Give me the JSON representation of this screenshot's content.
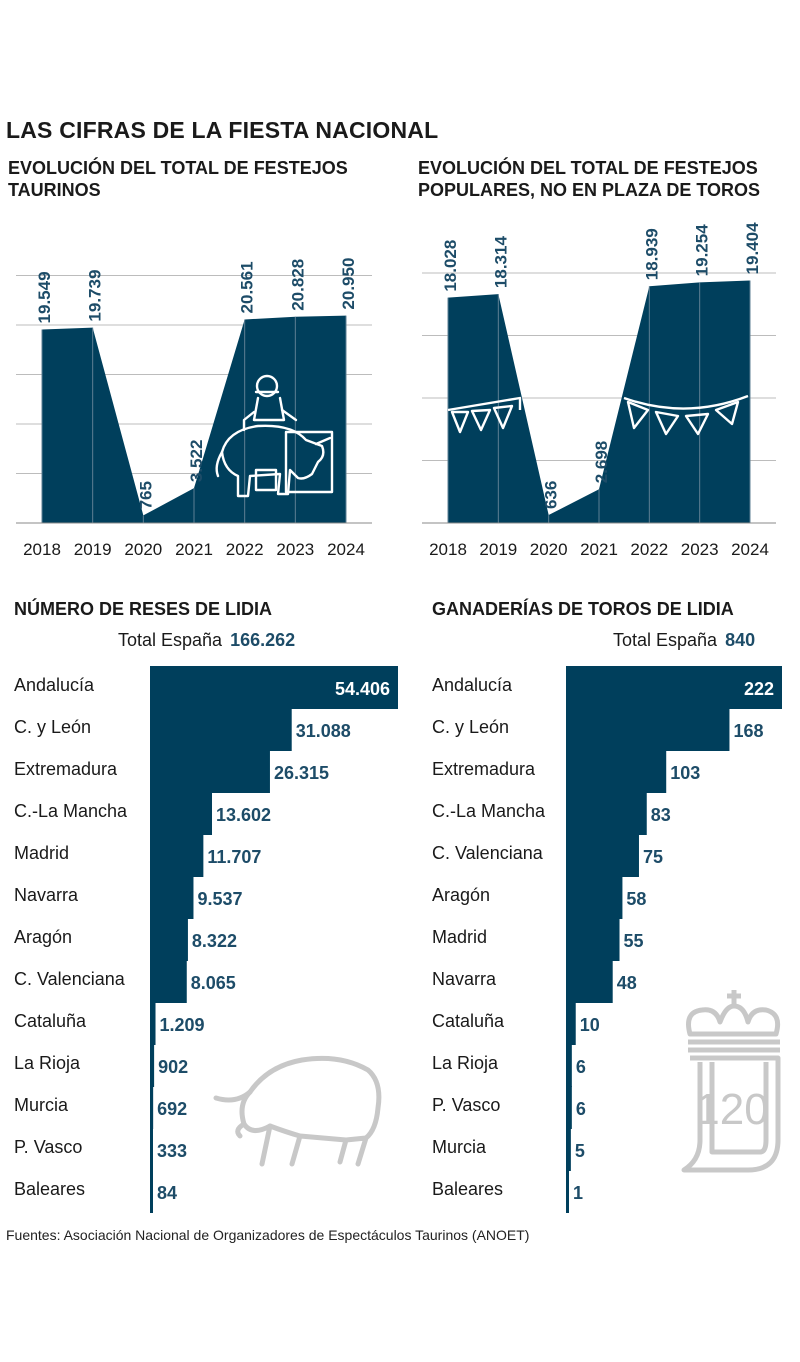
{
  "main_title": "LAS CIFRAS DE LA FIESTA NACIONAL",
  "colors": {
    "bar": "#003f5c",
    "text": "#1a1a1a",
    "value_label": "#1d4c68",
    "grid": "#bcbcbc",
    "watermark": "#c8c8c8"
  },
  "chart_data": [
    {
      "type": "area",
      "title": "EVOLUCIÓN DEL TOTAL DE FESTEJOS TAURINOS",
      "x": [
        "2018",
        "2019",
        "2020",
        "2021",
        "2022",
        "2023",
        "2024"
      ],
      "series": [
        {
          "values": [
            19549,
            19739,
            765,
            3522,
            20561,
            20828,
            20950
          ]
        }
      ],
      "labels": [
        "19.549",
        "19.739",
        "765",
        "3.522",
        "20.561",
        "20.828",
        "20.950"
      ],
      "ylim": [
        0,
        25000
      ],
      "grid": true,
      "icon": "bullfighter-on-bull-icon"
    },
    {
      "type": "area",
      "title": "EVOLUCIÓN DEL TOTAL DE FESTEJOS POPULARES, NO EN PLAZA DE TOROS",
      "x": [
        "2018",
        "2019",
        "2020",
        "2021",
        "2022",
        "2023",
        "2024"
      ],
      "series": [
        {
          "values": [
            18028,
            18314,
            636,
            2698,
            18939,
            19254,
            19404
          ]
        }
      ],
      "labels": [
        "18.028",
        "18.314",
        "636",
        "2.698",
        "18.939",
        "19.254",
        "19.404"
      ],
      "ylim": [
        0,
        25000
      ],
      "grid": true,
      "icon": "festive-bunting-icon"
    },
    {
      "type": "bar",
      "orientation": "horizontal",
      "title": "NÚMERO DE RESES DE LIDIA",
      "total_label": "Total España",
      "total": "166.262",
      "categories": [
        "Andalucía",
        "C. y León",
        "Extremadura",
        "C.-La Mancha",
        "Madrid",
        "Navarra",
        "Aragón",
        "C. Valenciana",
        "Cataluña",
        "La Rioja",
        "Murcia",
        "P. Vasco",
        "Baleares"
      ],
      "values": [
        54406,
        31088,
        26315,
        13602,
        11707,
        9537,
        8322,
        8065,
        1209,
        902,
        692,
        333,
        84
      ],
      "labels": [
        "54.406",
        "31.088",
        "26.315",
        "13.602",
        "11.707",
        "9.537",
        "8.322",
        "8.065",
        "1.209",
        "902",
        "692",
        "333",
        "84"
      ],
      "icon": "bull-outline-icon"
    },
    {
      "type": "bar",
      "orientation": "horizontal",
      "title": "GANADERÍAS DE TOROS DE LIDIA",
      "total_label": "Total España",
      "total": "840",
      "categories": [
        "Andalucía",
        "C. y León",
        "Extremadura",
        "C.-La Mancha",
        "C. Valenciana",
        "Aragón",
        "Madrid",
        "Navarra",
        "Cataluña",
        "La Rioja",
        "P. Vasco",
        "Murcia",
        "Baleares"
      ],
      "values": [
        222,
        168,
        103,
        83,
        75,
        58,
        55,
        48,
        10,
        6,
        6,
        5,
        1
      ],
      "labels": [
        "222",
        "168",
        "103",
        "83",
        "75",
        "58",
        "55",
        "48",
        "10",
        "6",
        "6",
        "5",
        "1"
      ],
      "icon": "crown-120-logo"
    }
  ],
  "logo_text": "120",
  "source": "Fuentes: Asociación Nacional de Organizadores de Espectáculos Taurinos (ANOET)"
}
